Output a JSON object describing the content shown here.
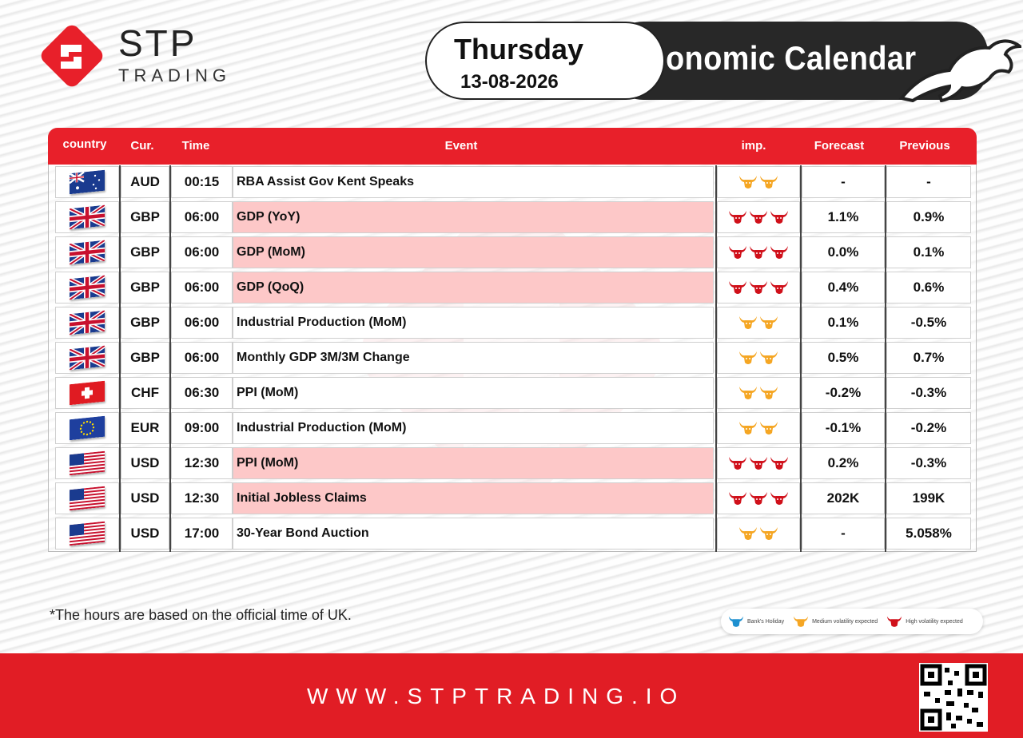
{
  "brand": {
    "name": "STP",
    "sub": "TRADING"
  },
  "header": {
    "day": "Thursday",
    "date": "13-08-2026",
    "title": "Economic Calendar"
  },
  "colors": {
    "accent": "#e8202a",
    "high": "#d0101a",
    "medium": "#f5a623",
    "holiday": "#1e90d0",
    "high_row": "#fdc8c8"
  },
  "table": {
    "columns": {
      "country": "country",
      "cur": "Cur.",
      "time": "Time",
      "event": "Event",
      "imp": "imp.",
      "forecast": "Forecast",
      "previous": "Previous"
    },
    "rows": [
      {
        "flag": "au-flag-icon",
        "cur": "AUD",
        "time": "00:15",
        "event": "RBA Assist Gov Kent Speaks",
        "imp": "medium",
        "forecast": "-",
        "previous": "-"
      },
      {
        "flag": "uk-flag-icon",
        "cur": "GBP",
        "time": "06:00",
        "event": "GDP (YoY)",
        "imp": "high",
        "forecast": "1.1%",
        "previous": "0.9%"
      },
      {
        "flag": "uk-flag-icon",
        "cur": "GBP",
        "time": "06:00",
        "event": "GDP (MoM)",
        "imp": "high",
        "forecast": "0.0%",
        "previous": "0.1%"
      },
      {
        "flag": "uk-flag-icon",
        "cur": "GBP",
        "time": "06:00",
        "event": "GDP (QoQ)",
        "imp": "high",
        "forecast": "0.4%",
        "previous": "0.6%"
      },
      {
        "flag": "uk-flag-icon",
        "cur": "GBP",
        "time": "06:00",
        "event": "Industrial Production (MoM)",
        "imp": "medium",
        "forecast": "0.1%",
        "previous": "-0.5%"
      },
      {
        "flag": "uk-flag-icon",
        "cur": "GBP",
        "time": "06:00",
        "event": "Monthly GDP 3M/3M Change",
        "imp": "medium",
        "forecast": "0.5%",
        "previous": "0.7%"
      },
      {
        "flag": "ch-flag-icon",
        "cur": "CHF",
        "time": "06:30",
        "event": "PPI (MoM)",
        "imp": "medium",
        "forecast": "-0.2%",
        "previous": "-0.3%"
      },
      {
        "flag": "eu-flag-icon",
        "cur": "EUR",
        "time": "09:00",
        "event": "Industrial Production (MoM)",
        "imp": "medium",
        "forecast": "-0.1%",
        "previous": "-0.2%"
      },
      {
        "flag": "us-flag-icon",
        "cur": "USD",
        "time": "12:30",
        "event": "PPI (MoM)",
        "imp": "high",
        "forecast": "0.2%",
        "previous": "-0.3%"
      },
      {
        "flag": "us-flag-icon",
        "cur": "USD",
        "time": "12:30",
        "event": "Initial Jobless Claims",
        "imp": "high",
        "forecast": "202K",
        "previous": "199K"
      },
      {
        "flag": "us-flag-icon",
        "cur": "USD",
        "time": "17:00",
        "event": "30-Year Bond Auction",
        "imp": "medium",
        "forecast": "-",
        "previous": "5.058%"
      }
    ]
  },
  "footnote": "*The hours are based on the official time of UK.",
  "legend": {
    "holiday": "Bank's Holiday",
    "medium": "Medium volatility expected",
    "high": "High volatility expected"
  },
  "footer": {
    "url": "WWW.STPTRADING.IO"
  }
}
